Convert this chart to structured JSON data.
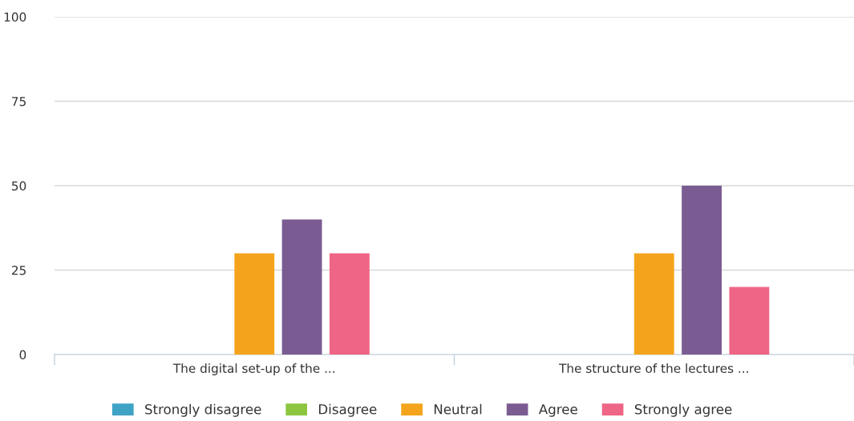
{
  "chart_data": {
    "type": "bar",
    "categories": [
      "The digital set-up of the ...",
      "The structure of the lectures ..."
    ],
    "series": [
      {
        "name": "Strongly disagree",
        "color": "#3fa3c5",
        "values": [
          0,
          0
        ]
      },
      {
        "name": "Disagree",
        "color": "#8cc63e",
        "values": [
          0,
          0
        ]
      },
      {
        "name": "Neutral",
        "color": "#f4a41c",
        "values": [
          30,
          30
        ]
      },
      {
        "name": "Agree",
        "color": "#7b5c92",
        "values": [
          40,
          50
        ]
      },
      {
        "name": "Strongly agree",
        "color": "#ef6585",
        "values": [
          30,
          20
        ]
      }
    ],
    "ylim": [
      0,
      100
    ],
    "yticks": [
      0,
      25,
      50,
      75,
      100
    ],
    "grid": "y",
    "legend": "bottom"
  }
}
